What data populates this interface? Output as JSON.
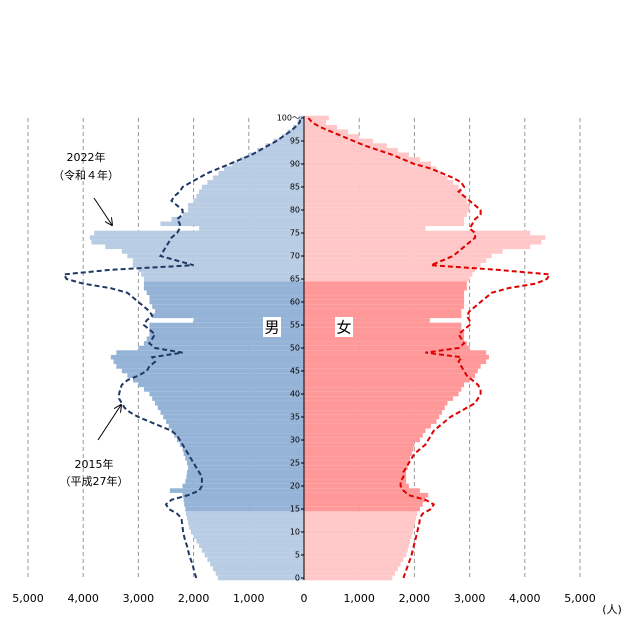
{
  "chart_data": {
    "type": "pyramid",
    "categories": [
      "0",
      null,
      null,
      null,
      null,
      "5",
      null,
      null,
      null,
      null,
      "10",
      null,
      null,
      null,
      null,
      "15",
      null,
      null,
      null,
      null,
      "20",
      null,
      null,
      null,
      null,
      "25",
      null,
      null,
      null,
      null,
      "30",
      null,
      null,
      null,
      null,
      "35",
      null,
      null,
      null,
      null,
      "40",
      null,
      null,
      null,
      null,
      "45",
      null,
      null,
      null,
      null,
      "50",
      null,
      null,
      null,
      null,
      "55",
      null,
      null,
      null,
      null,
      "60",
      null,
      null,
      null,
      null,
      "65",
      null,
      null,
      null,
      null,
      "70",
      null,
      null,
      null,
      null,
      "75",
      null,
      null,
      null,
      null,
      "80",
      null,
      null,
      null,
      null,
      "85",
      null,
      null,
      null,
      null,
      "90",
      null,
      null,
      null,
      null,
      "95",
      null,
      null,
      null,
      null,
      "100～"
    ],
    "highlight_range": [
      15,
      64
    ],
    "series": [
      {
        "name": "男",
        "side": "left",
        "color": "#b8cce4",
        "highlight_color": "#95b3d7",
        "line_color": "#1f3864",
        "values": [
          1560,
          1600,
          1650,
          1700,
          1750,
          1800,
          1850,
          1900,
          1950,
          2000,
          2050,
          2080,
          2100,
          2120,
          2140,
          2150,
          2170,
          2180,
          2200,
          2430,
          2200,
          2150,
          2130,
          2120,
          2100,
          2120,
          2150,
          2180,
          2200,
          2250,
          2300,
          2350,
          2400,
          2450,
          2500,
          2550,
          2600,
          2650,
          2700,
          2750,
          2800,
          2900,
          3000,
          3100,
          3200,
          3300,
          3400,
          3450,
          3500,
          3400,
          3000,
          2900,
          2850,
          2800,
          2800,
          2800,
          2000,
          2750,
          2700,
          2750,
          2800,
          2800,
          2850,
          2900,
          2900,
          2900,
          2950,
          3000,
          3100,
          3100,
          3200,
          3300,
          3600,
          3850,
          3880,
          3800,
          1900,
          2600,
          2400,
          2200,
          2100,
          2100,
          2000,
          1950,
          1900,
          1850,
          1750,
          1650,
          1550,
          1450,
          1300,
          1150,
          1000,
          850,
          700,
          550,
          400,
          300,
          200,
          120,
          100
        ],
        "line_values": [
          1950,
          1980,
          2000,
          2020,
          2050,
          2080,
          2100,
          2120,
          2150,
          2170,
          2190,
          2200,
          2210,
          2220,
          2300,
          2450,
          2500,
          2400,
          2100,
          1900,
          1850,
          1850,
          1850,
          1900,
          1950,
          2000,
          2050,
          2100,
          2150,
          2200,
          2250,
          2300,
          2400,
          2600,
          2800,
          3000,
          3150,
          3250,
          3300,
          3350,
          3350,
          3330,
          3300,
          3200,
          3000,
          2850,
          2800,
          2700,
          2750,
          2200,
          2700,
          2800,
          2750,
          2700,
          2800,
          2900,
          2850,
          2750,
          2800,
          2900,
          3000,
          3100,
          3200,
          3500,
          4000,
          4300,
          4350,
          3500,
          2000,
          2300,
          2600,
          2550,
          2500,
          2450,
          2400,
          2300,
          2250,
          2250,
          2300,
          2200,
          2200,
          2300,
          2400,
          2350,
          2250,
          2200,
          2050,
          1900,
          1750,
          1550,
          1350,
          1150,
          950,
          800,
          650,
          500,
          380,
          260,
          160,
          80,
          60
        ]
      },
      {
        "name": "女",
        "side": "right",
        "color": "#ffc7c7",
        "highlight_color": "#ff9999",
        "line_color": "#e00000",
        "values": [
          1600,
          1650,
          1700,
          1750,
          1800,
          1850,
          1880,
          1900,
          1920,
          1950,
          1970,
          1990,
          2010,
          2030,
          2050,
          2100,
          2150,
          2200,
          2250,
          2100,
          1900,
          1850,
          1850,
          1850,
          1880,
          1900,
          1920,
          1950,
          1980,
          2000,
          2100,
          2150,
          2200,
          2300,
          2400,
          2450,
          2500,
          2550,
          2600,
          2700,
          2800,
          2850,
          2900,
          3000,
          3100,
          3150,
          3200,
          3300,
          3350,
          3300,
          3000,
          2950,
          2900,
          2900,
          2850,
          2850,
          2280,
          2850,
          2850,
          2900,
          2900,
          2900,
          2900,
          2950,
          2950,
          3000,
          3050,
          3100,
          3200,
          3300,
          3400,
          3600,
          4100,
          4300,
          4370,
          4100,
          2200,
          2900,
          2900,
          2950,
          3000,
          3000,
          2950,
          2900,
          2850,
          2800,
          2700,
          2600,
          2500,
          2400,
          2300,
          2100,
          1900,
          1700,
          1500,
          1250,
          1000,
          800,
          600,
          400,
          450
        ],
        "line_values": [
          1800,
          1830,
          1860,
          1890,
          1920,
          1950,
          1970,
          1990,
          2010,
          2030,
          2050,
          2070,
          2090,
          2100,
          2150,
          2300,
          2350,
          2200,
          1900,
          1800,
          1750,
          1750,
          1800,
          1800,
          1850,
          1900,
          1950,
          2000,
          2100,
          2200,
          2250,
          2300,
          2350,
          2450,
          2550,
          2650,
          2800,
          2950,
          3100,
          3150,
          3200,
          3200,
          3150,
          3050,
          2950,
          2900,
          2850,
          2800,
          2850,
          2200,
          2800,
          2900,
          2850,
          2800,
          2900,
          3000,
          3000,
          2950,
          3000,
          3100,
          3200,
          3300,
          3400,
          3700,
          4200,
          4400,
          4450,
          3500,
          2300,
          2500,
          2700,
          2800,
          2900,
          3000,
          3100,
          3100,
          3000,
          3050,
          3100,
          3200,
          3200,
          3100,
          3000,
          2900,
          2800,
          2900,
          2850,
          2700,
          2500,
          2300,
          2000,
          1800,
          1600,
          1350,
          1100,
          900,
          700,
          500,
          300,
          150,
          80
        ]
      }
    ],
    "xlim": [
      0,
      5000
    ],
    "xticks": [
      0,
      {
        "value": 1000,
        "label": "1,000"
      },
      {
        "value": 2000,
        "label": "2,000"
      },
      {
        "value": 3000,
        "label": "3,000"
      },
      {
        "value": 4000,
        "label": "4,000"
      },
      {
        "value": 5000,
        "label": "5,000"
      }
    ],
    "grid": true,
    "unit_label": "(人)",
    "annotations": [
      {
        "text": "2022年",
        "subtext": "（令和４年）"
      },
      {
        "text": "2015年",
        "subtext": "（平成27年）"
      }
    ]
  }
}
